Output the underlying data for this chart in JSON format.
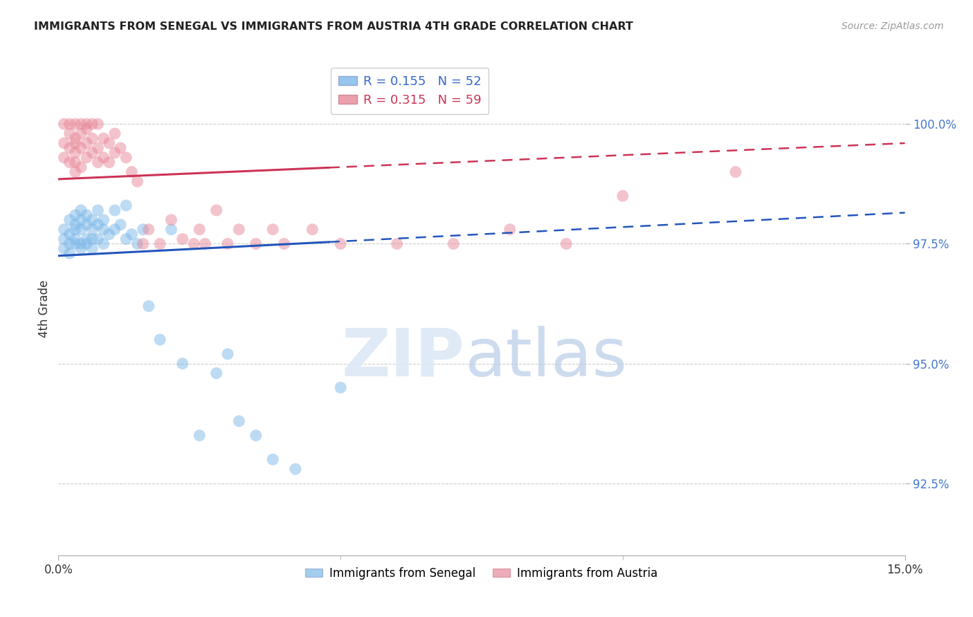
{
  "title": "IMMIGRANTS FROM SENEGAL VS IMMIGRANTS FROM AUSTRIA 4TH GRADE CORRELATION CHART",
  "source": "Source: ZipAtlas.com",
  "ylabel": "4th Grade",
  "xlim": [
    0.0,
    0.15
  ],
  "ylim": [
    91.0,
    101.3
  ],
  "legend_blue_label": "Immigrants from Senegal",
  "legend_pink_label": "Immigrants from Austria",
  "R_blue": 0.155,
  "N_blue": 52,
  "R_pink": 0.315,
  "N_pink": 59,
  "blue_color": "#7db8e8",
  "pink_color": "#e8899a",
  "trend_blue_color": "#2255bb",
  "trend_pink_color": "#cc3355",
  "senegal_x": [
    0.001,
    0.001,
    0.001,
    0.002,
    0.002,
    0.002,
    0.002,
    0.003,
    0.003,
    0.003,
    0.003,
    0.003,
    0.004,
    0.004,
    0.004,
    0.004,
    0.004,
    0.005,
    0.005,
    0.005,
    0.005,
    0.006,
    0.006,
    0.006,
    0.006,
    0.007,
    0.007,
    0.007,
    0.008,
    0.008,
    0.008,
    0.009,
    0.01,
    0.01,
    0.011,
    0.012,
    0.012,
    0.013,
    0.014,
    0.015,
    0.016,
    0.018,
    0.02,
    0.022,
    0.025,
    0.028,
    0.03,
    0.032,
    0.035,
    0.038,
    0.042,
    0.05
  ],
  "senegal_y": [
    97.4,
    97.6,
    97.8,
    97.5,
    97.7,
    98.0,
    97.3,
    97.5,
    97.8,
    98.1,
    97.6,
    97.9,
    97.5,
    97.8,
    98.0,
    98.2,
    97.4,
    97.6,
    97.9,
    98.1,
    97.5,
    97.6,
    97.8,
    98.0,
    97.4,
    97.6,
    97.9,
    98.2,
    97.5,
    97.8,
    98.0,
    97.7,
    97.8,
    98.2,
    97.9,
    97.6,
    98.3,
    97.7,
    97.5,
    97.8,
    96.2,
    95.5,
    97.8,
    95.0,
    93.5,
    94.8,
    95.2,
    93.8,
    93.5,
    93.0,
    92.8,
    94.5
  ],
  "austria_x": [
    0.001,
    0.001,
    0.001,
    0.002,
    0.002,
    0.002,
    0.002,
    0.003,
    0.003,
    0.003,
    0.003,
    0.003,
    0.003,
    0.004,
    0.004,
    0.004,
    0.004,
    0.005,
    0.005,
    0.005,
    0.005,
    0.006,
    0.006,
    0.006,
    0.007,
    0.007,
    0.007,
    0.008,
    0.008,
    0.009,
    0.009,
    0.01,
    0.01,
    0.011,
    0.012,
    0.013,
    0.014,
    0.015,
    0.016,
    0.018,
    0.02,
    0.022,
    0.024,
    0.025,
    0.026,
    0.028,
    0.03,
    0.032,
    0.035,
    0.038,
    0.04,
    0.045,
    0.05,
    0.06,
    0.07,
    0.08,
    0.09,
    0.1,
    0.12
  ],
  "austria_y": [
    99.3,
    99.6,
    100.0,
    99.2,
    99.5,
    99.8,
    100.0,
    99.0,
    99.4,
    99.7,
    100.0,
    99.2,
    99.6,
    99.1,
    99.5,
    99.8,
    100.0,
    99.3,
    99.6,
    99.9,
    100.0,
    99.4,
    99.7,
    100.0,
    99.2,
    99.5,
    100.0,
    99.3,
    99.7,
    99.2,
    99.6,
    99.4,
    99.8,
    99.5,
    99.3,
    99.0,
    98.8,
    97.5,
    97.8,
    97.5,
    98.0,
    97.6,
    97.5,
    97.8,
    97.5,
    98.2,
    97.5,
    97.8,
    97.5,
    97.8,
    97.5,
    97.8,
    97.5,
    97.5,
    97.5,
    97.8,
    97.5,
    98.5,
    99.0
  ]
}
